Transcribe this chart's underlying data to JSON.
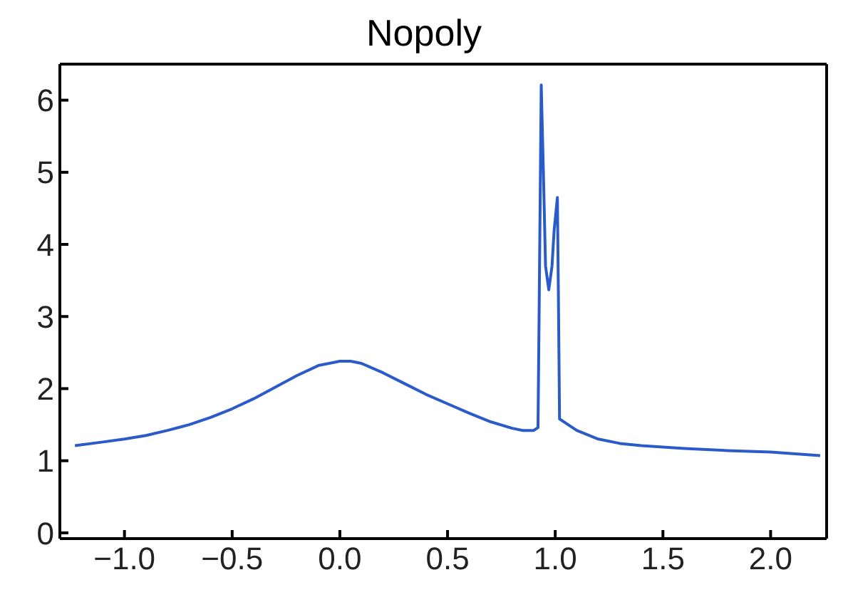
{
  "chart_data": {
    "type": "line",
    "title": "Nopoly",
    "x": [
      -1.23,
      -1.1,
      -1.0,
      -0.9,
      -0.8,
      -0.7,
      -0.6,
      -0.5,
      -0.4,
      -0.3,
      -0.2,
      -0.1,
      0.0,
      0.05,
      0.1,
      0.2,
      0.3,
      0.4,
      0.5,
      0.6,
      0.7,
      0.8,
      0.85,
      0.9,
      0.92,
      0.925,
      0.935,
      0.945,
      0.955,
      0.97,
      0.985,
      0.995,
      1.01,
      1.015,
      1.02,
      1.05,
      1.1,
      1.2,
      1.3,
      1.4,
      1.5,
      1.6,
      1.8,
      2.0,
      2.23
    ],
    "series": [
      {
        "color": "#2a5bc8",
        "values": [
          1.21,
          1.26,
          1.3,
          1.35,
          1.42,
          1.5,
          1.6,
          1.72,
          1.86,
          2.02,
          2.18,
          2.32,
          2.38,
          2.38,
          2.35,
          2.22,
          2.07,
          1.92,
          1.79,
          1.66,
          1.54,
          1.45,
          1.42,
          1.42,
          1.46,
          3.0,
          6.21,
          5.0,
          3.7,
          3.37,
          3.7,
          4.2,
          4.65,
          3.2,
          1.58,
          1.52,
          1.42,
          1.3,
          1.24,
          1.21,
          1.19,
          1.17,
          1.14,
          1.12,
          1.07
        ]
      }
    ],
    "xlim": [
      -1.3,
      2.26
    ],
    "ylim": [
      -0.08,
      6.5
    ],
    "xticks": [
      {
        "value": -1.0,
        "label": "−1.0"
      },
      {
        "value": -0.5,
        "label": "−0.5"
      },
      {
        "value": 0.0,
        "label": "0.0"
      },
      {
        "value": 0.5,
        "label": "0.5"
      },
      {
        "value": 1.0,
        "label": "1.0"
      },
      {
        "value": 1.5,
        "label": "1.5"
      },
      {
        "value": 2.0,
        "label": "2.0"
      }
    ],
    "yticks": [
      0,
      1,
      2,
      3,
      4,
      5,
      6
    ],
    "grid": false,
    "marker": "none",
    "line_style": "solid"
  }
}
